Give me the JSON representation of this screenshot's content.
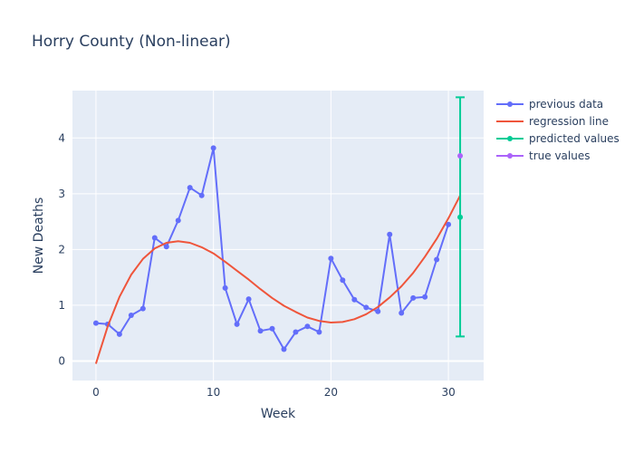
{
  "chart_data": {
    "type": "line",
    "title": "Horry County (Non-linear)",
    "xlabel": "Week",
    "ylabel": "New Deaths",
    "xlim": [
      -2,
      33
    ],
    "ylim": [
      -0.35,
      4.85
    ],
    "xticks": [
      0,
      10,
      20,
      30
    ],
    "yticks": [
      0,
      1,
      2,
      3,
      4
    ],
    "grid": true,
    "legend_position": "top-right",
    "colors": {
      "plot_bg": "#e5ecf6",
      "grid": "#ffffff",
      "previous": "#636efa",
      "regression": "#ef553b",
      "predicted": "#00cc96",
      "true": "#ab63fa"
    },
    "series": [
      {
        "name": "previous data",
        "x": [
          0,
          1,
          2,
          3,
          4,
          5,
          6,
          7,
          8,
          9,
          10,
          11,
          12,
          13,
          14,
          15,
          16,
          17,
          18,
          19,
          20,
          21,
          22,
          23,
          24,
          25,
          26,
          27,
          28,
          29,
          30
        ],
        "y": [
          0.68,
          0.66,
          0.48,
          0.82,
          0.94,
          2.21,
          2.05,
          2.52,
          3.11,
          2.97,
          3.82,
          1.31,
          0.66,
          1.11,
          0.54,
          0.58,
          0.21,
          0.52,
          0.62,
          0.52,
          1.84,
          1.45,
          1.1,
          0.96,
          0.89,
          2.27,
          0.86,
          1.13,
          1.15,
          1.82,
          2.45
        ]
      },
      {
        "name": "regression line",
        "x": [
          0,
          1,
          2,
          3,
          4,
          5,
          6,
          7,
          8,
          9,
          10,
          11,
          12,
          13,
          14,
          15,
          16,
          17,
          18,
          19,
          20,
          21,
          22,
          23,
          24,
          25,
          26,
          27,
          28,
          29,
          30,
          31
        ],
        "y": [
          -0.05,
          0.62,
          1.15,
          1.55,
          1.83,
          2.02,
          2.12,
          2.15,
          2.12,
          2.04,
          1.93,
          1.78,
          1.62,
          1.46,
          1.29,
          1.13,
          0.99,
          0.88,
          0.78,
          0.72,
          0.69,
          0.7,
          0.75,
          0.84,
          0.97,
          1.14,
          1.34,
          1.58,
          1.87,
          2.19,
          2.56,
          2.97
        ]
      },
      {
        "name": "predicted values",
        "x": [
          31
        ],
        "y": [
          2.58
        ],
        "error_low": [
          0.44
        ],
        "error_high": [
          4.73
        ]
      },
      {
        "name": "true values",
        "x": [
          31
        ],
        "y": [
          3.68
        ]
      }
    ]
  }
}
